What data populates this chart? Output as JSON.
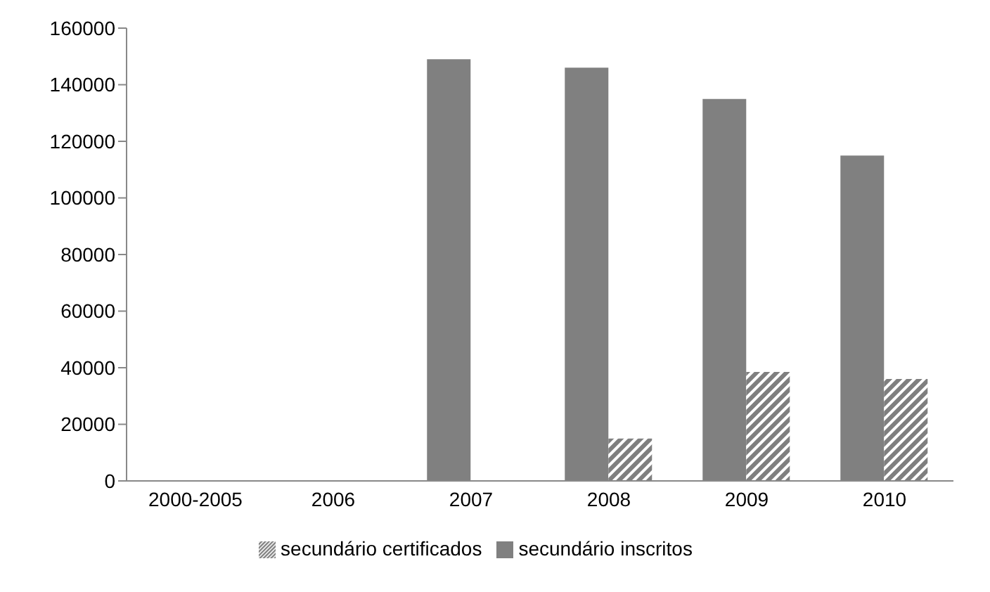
{
  "chart_data": {
    "type": "bar",
    "categories": [
      "2000-2005",
      "2006",
      "2007",
      "2008",
      "2009",
      "2010"
    ],
    "series": [
      {
        "name": "secundário inscritos",
        "color": "#808080",
        "values": [
          null,
          null,
          149000,
          146000,
          135000,
          115000
        ]
      },
      {
        "name": "secundário certificados",
        "color": "#7f7f7f",
        "values": [
          null,
          null,
          null,
          15000,
          38500,
          36000
        ]
      }
    ],
    "ylim": [
      0,
      160000
    ],
    "yticks": [
      0,
      20000,
      40000,
      60000,
      80000,
      100000,
      120000,
      140000,
      160000
    ],
    "grid": false,
    "legend": "bottom"
  }
}
